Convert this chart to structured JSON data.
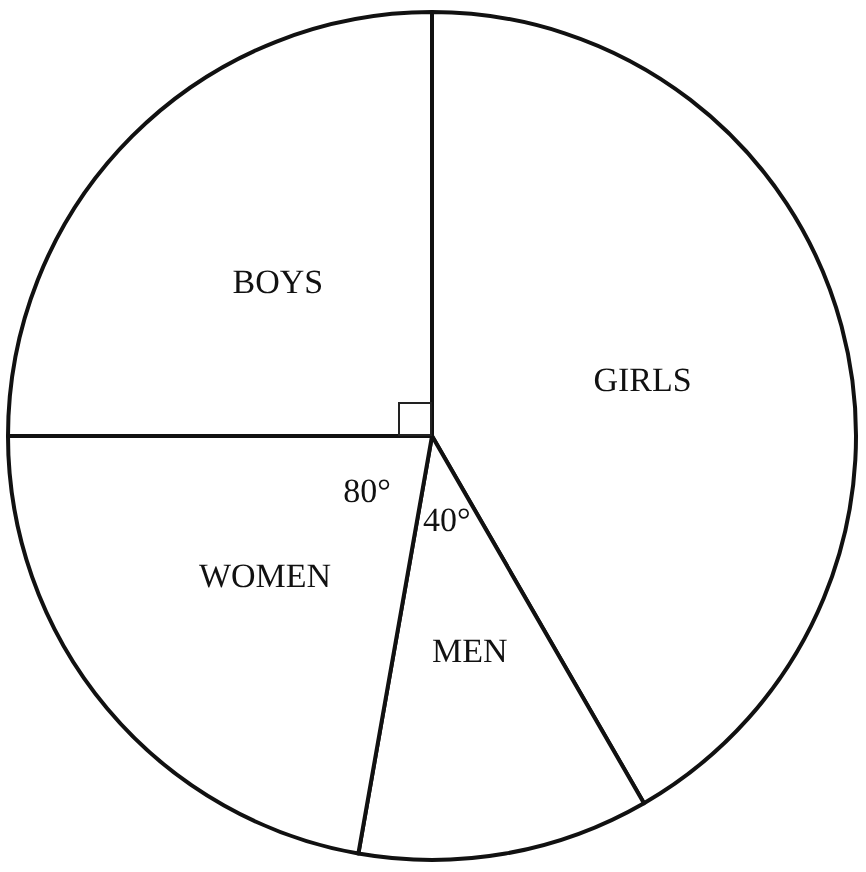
{
  "chart_data": {
    "type": "pie",
    "categories": [
      "GIRLS",
      "MEN",
      "WOMEN",
      "BOYS"
    ],
    "values": [
      41.667,
      11.111,
      22.222,
      25
    ],
    "colors": [
      "#ffffff",
      "#ffffff",
      "#ffffff",
      "#ffffff"
    ],
    "annotations": [
      {
        "text": "80°",
        "x": "WOMEN"
      },
      {
        "text": "40°",
        "x": "MEN"
      }
    ],
    "legend": false
  }
}
